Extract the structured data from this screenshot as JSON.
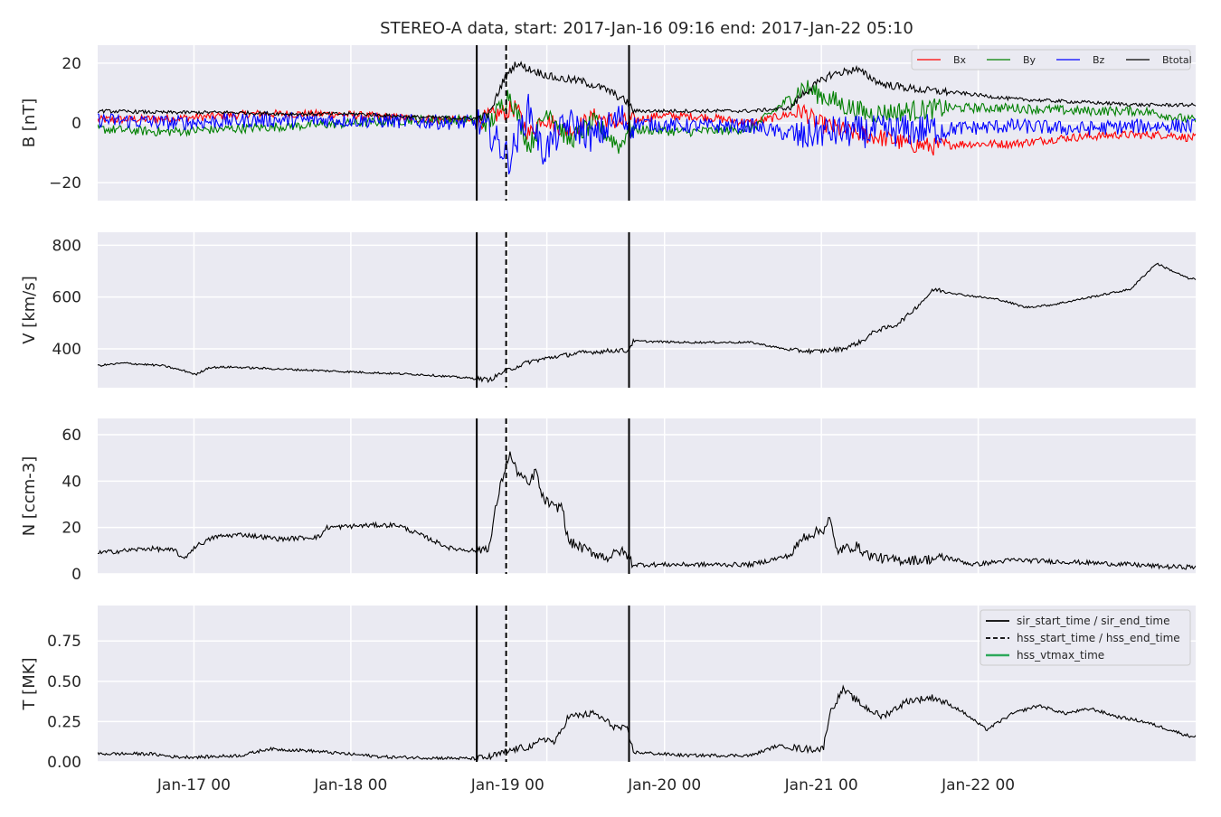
{
  "figure_title": "STEREO-A data, start: 2017-Jan-16 09:16  end: 2017-Jan-22 05:10",
  "colors": {
    "panel_bg": "#eaeaf2",
    "grid": "#ffffff",
    "bx": "#ff0000",
    "by": "#008000",
    "bz": "#0000ff",
    "btotal": "#000000",
    "event_line": "#000000",
    "hss_vtmax": "#2ca85a"
  },
  "chart_data": [
    {
      "type": "line",
      "ylabel": "B [nT]",
      "ylim": [
        -26,
        26
      ],
      "yticks": [
        -20,
        0,
        20
      ],
      "ytick_labels": [
        "−20",
        "0",
        "20"
      ],
      "legend_position": "top-right",
      "series": [
        {
          "name": "Bx",
          "color_key": "bx",
          "noise": 1.4,
          "points": [
            [
              0,
              1
            ],
            [
              12,
              1.5
            ],
            [
              24,
              3
            ],
            [
              36,
              3
            ],
            [
              48,
              1.5
            ],
            [
              58,
              0.5
            ],
            [
              60,
              2
            ],
            [
              64,
              5
            ],
            [
              66,
              -4
            ],
            [
              68,
              2
            ],
            [
              72,
              -3
            ],
            [
              76,
              2
            ],
            [
              80,
              0
            ],
            [
              86,
              2.5
            ],
            [
              93,
              2
            ],
            [
              100,
              0
            ],
            [
              108,
              4
            ],
            [
              110,
              0
            ],
            [
              115,
              -3
            ],
            [
              120,
              -5
            ],
            [
              124,
              -7
            ],
            [
              128,
              -8
            ],
            [
              132,
              -7
            ],
            [
              140,
              -7
            ],
            [
              148,
              -5
            ],
            [
              156,
              -4
            ],
            [
              164,
              -4
            ],
            [
              167,
              -5
            ]
          ]
        },
        {
          "name": "By",
          "color_key": "by",
          "noise": 1.6,
          "points": [
            [
              0,
              -2
            ],
            [
              10,
              -3
            ],
            [
              20,
              -2
            ],
            [
              30,
              -1
            ],
            [
              40,
              0
            ],
            [
              48,
              1
            ],
            [
              58,
              1
            ],
            [
              60,
              0
            ],
            [
              63,
              10
            ],
            [
              66,
              -8
            ],
            [
              69,
              5
            ],
            [
              72,
              -6
            ],
            [
              76,
              0
            ],
            [
              80,
              -8
            ],
            [
              81,
              -2
            ],
            [
              90,
              -3
            ],
            [
              100,
              -2
            ],
            [
              108,
              12
            ],
            [
              110,
              10
            ],
            [
              114,
              6
            ],
            [
              118,
              3
            ],
            [
              124,
              4
            ],
            [
              130,
              5
            ],
            [
              140,
              5
            ],
            [
              150,
              4
            ],
            [
              160,
              4
            ],
            [
              167,
              1
            ]
          ]
        },
        {
          "name": "Bz",
          "color_key": "bz",
          "noise": 2.5,
          "points": [
            [
              0,
              1
            ],
            [
              12,
              0
            ],
            [
              24,
              1
            ],
            [
              36,
              1
            ],
            [
              48,
              0.5
            ],
            [
              58,
              0
            ],
            [
              60,
              -3
            ],
            [
              63,
              -12
            ],
            [
              66,
              5
            ],
            [
              68,
              -10
            ],
            [
              72,
              0
            ],
            [
              76,
              -5
            ],
            [
              80,
              2
            ],
            [
              81,
              0
            ],
            [
              90,
              -1
            ],
            [
              100,
              -1
            ],
            [
              108,
              -5
            ],
            [
              110,
              -3
            ],
            [
              118,
              -3
            ],
            [
              130,
              -2
            ],
            [
              140,
              -1
            ],
            [
              150,
              -2
            ],
            [
              160,
              -1
            ],
            [
              167,
              -1
            ]
          ]
        },
        {
          "name": "Btotal",
          "color_key": "btotal",
          "noise": 0.6,
          "points": [
            [
              0,
              4
            ],
            [
              10,
              3.5
            ],
            [
              20,
              3.5
            ],
            [
              30,
              3
            ],
            [
              40,
              3
            ],
            [
              48,
              2
            ],
            [
              58,
              1.5
            ],
            [
              60,
              3
            ],
            [
              62,
              14
            ],
            [
              64,
              20
            ],
            [
              66,
              18
            ],
            [
              70,
              15
            ],
            [
              74,
              14
            ],
            [
              78,
              11
            ],
            [
              81,
              7
            ],
            [
              82,
              4
            ],
            [
              90,
              4
            ],
            [
              100,
              4
            ],
            [
              106,
              5
            ],
            [
              108,
              10
            ],
            [
              112,
              16
            ],
            [
              116,
              18
            ],
            [
              120,
              13
            ],
            [
              126,
              11
            ],
            [
              132,
              10
            ],
            [
              140,
              8
            ],
            [
              150,
              7
            ],
            [
              160,
              6
            ],
            [
              167,
              6
            ]
          ]
        }
      ]
    },
    {
      "type": "line",
      "ylabel": "V [km/s]",
      "ylim": [
        250,
        850
      ],
      "yticks": [
        400,
        600,
        800
      ],
      "ytick_labels": [
        "400",
        "600",
        "800"
      ],
      "series": [
        {
          "name": "",
          "color_key": "btotal",
          "noise": 4,
          "points": [
            [
              0,
              335
            ],
            [
              4,
              345
            ],
            [
              10,
              335
            ],
            [
              14,
              310
            ],
            [
              15,
              300
            ],
            [
              17,
              328
            ],
            [
              20,
              330
            ],
            [
              30,
              320
            ],
            [
              40,
              310
            ],
            [
              50,
              300
            ],
            [
              58,
              285
            ],
            [
              60,
              280
            ],
            [
              62,
              310
            ],
            [
              66,
              350
            ],
            [
              70,
              370
            ],
            [
              74,
              385
            ],
            [
              80,
              395
            ],
            [
              81,
              390
            ],
            [
              82,
              430
            ],
            [
              90,
              425
            ],
            [
              100,
              425
            ],
            [
              106,
              395
            ],
            [
              110,
              390
            ],
            [
              114,
              400
            ],
            [
              117,
              430
            ],
            [
              119,
              470
            ],
            [
              122,
              490
            ],
            [
              124,
              530
            ],
            [
              126,
              580
            ],
            [
              128,
              630
            ],
            [
              132,
              610
            ],
            [
              138,
              590
            ],
            [
              142,
              560
            ],
            [
              146,
              570
            ],
            [
              150,
              590
            ],
            [
              154,
              610
            ],
            [
              158,
              630
            ],
            [
              162,
              730
            ],
            [
              167,
              670
            ]
          ]
        }
      ]
    },
    {
      "type": "line",
      "ylabel": "N [ccm-3]",
      "ylim": [
        0,
        67
      ],
      "yticks": [
        0,
        20,
        40,
        60
      ],
      "ytick_labels": [
        "0",
        "20",
        "40",
        "60"
      ],
      "series": [
        {
          "name": "",
          "color_key": "btotal",
          "noise": 1.0,
          "points": [
            [
              0,
              9
            ],
            [
              8,
              11
            ],
            [
              12,
              10
            ],
            [
              13,
              6
            ],
            [
              15,
              12
            ],
            [
              18,
              16
            ],
            [
              22,
              17
            ],
            [
              28,
              15
            ],
            [
              34,
              16
            ],
            [
              35,
              20
            ],
            [
              42,
              21
            ],
            [
              46,
              21
            ],
            [
              50,
              16
            ],
            [
              54,
              11
            ],
            [
              58,
              10
            ],
            [
              60,
              12
            ],
            [
              61,
              30
            ],
            [
              62,
              42
            ],
            [
              63,
              52
            ],
            [
              64,
              45
            ],
            [
              66,
              38
            ],
            [
              67,
              45
            ],
            [
              68,
              33
            ],
            [
              70,
              28
            ],
            [
              71,
              30
            ],
            [
              72,
              14
            ],
            [
              75,
              10
            ],
            [
              78,
              7
            ],
            [
              80,
              10
            ],
            [
              81,
              8
            ],
            [
              82,
              4
            ],
            [
              90,
              4
            ],
            [
              100,
              4
            ],
            [
              106,
              8
            ],
            [
              108,
              16
            ],
            [
              111,
              19
            ],
            [
              112,
              24
            ],
            [
              113,
              10
            ],
            [
              116,
              12
            ],
            [
              118,
              8
            ],
            [
              121,
              6
            ],
            [
              126,
              6
            ],
            [
              130,
              7
            ],
            [
              134,
              4
            ],
            [
              140,
              6
            ],
            [
              150,
              5
            ],
            [
              158,
              4
            ],
            [
              164,
              3
            ],
            [
              167,
              3
            ]
          ]
        }
      ]
    },
    {
      "type": "line",
      "ylabel": "T [MK]",
      "ylim": [
        0,
        0.97
      ],
      "yticks": [
        0,
        0.25,
        0.5,
        0.75
      ],
      "ytick_labels": [
        "0.00",
        "0.25",
        "0.50",
        "0.75"
      ],
      "legend_position": "top-right",
      "series": [
        {
          "name": "",
          "color_key": "btotal",
          "noise": 0.01,
          "points": [
            [
              0,
              0.05
            ],
            [
              8,
              0.05
            ],
            [
              12,
              0.03
            ],
            [
              16,
              0.03
            ],
            [
              22,
              0.04
            ],
            [
              26,
              0.08
            ],
            [
              32,
              0.07
            ],
            [
              38,
              0.05
            ],
            [
              44,
              0.03
            ],
            [
              58,
              0.02
            ],
            [
              60,
              0.03
            ],
            [
              64,
              0.08
            ],
            [
              67,
              0.1
            ],
            [
              68,
              0.15
            ],
            [
              70,
              0.12
            ],
            [
              72,
              0.28
            ],
            [
              76,
              0.3
            ],
            [
              79,
              0.22
            ],
            [
              81,
              0.2
            ],
            [
              82,
              0.06
            ],
            [
              90,
              0.04
            ],
            [
              100,
              0.04
            ],
            [
              104,
              0.1
            ],
            [
              108,
              0.08
            ],
            [
              111,
              0.08
            ],
            [
              112,
              0.3
            ],
            [
              114,
              0.45
            ],
            [
              117,
              0.35
            ],
            [
              120,
              0.28
            ],
            [
              124,
              0.38
            ],
            [
              128,
              0.4
            ],
            [
              132,
              0.32
            ],
            [
              136,
              0.2
            ],
            [
              140,
              0.3
            ],
            [
              144,
              0.35
            ],
            [
              148,
              0.3
            ],
            [
              152,
              0.33
            ],
            [
              156,
              0.28
            ],
            [
              160,
              0.25
            ],
            [
              164,
              0.2
            ],
            [
              167,
              0.16
            ]
          ]
        }
      ]
    }
  ],
  "x_axis": {
    "span_hours": 168,
    "ticks": [
      {
        "hour": 14.73,
        "label": "Jan-17 00"
      },
      {
        "hour": 38.73,
        "label": "Jan-18 00"
      },
      {
        "hour": 62.73,
        "label": "Jan-19 00"
      },
      {
        "hour": 86.73,
        "label": "Jan-20 00"
      },
      {
        "hour": 110.73,
        "label": "Jan-21 00"
      },
      {
        "hour": 134.73,
        "label": "Jan-22 00"
      }
    ],
    "extra_gridlines_hours": [
      68.73
    ]
  },
  "event_lines": [
    {
      "hour": 58.0,
      "style": "solid"
    },
    {
      "hour": 62.5,
      "style": "dashed"
    },
    {
      "hour": 81.3,
      "style": "solid"
    }
  ],
  "legend_b": {
    "entries": [
      {
        "label": "Bx",
        "color_key": "bx"
      },
      {
        "label": "By",
        "color_key": "by"
      },
      {
        "label": "Bz",
        "color_key": "bz"
      },
      {
        "label": "Btotal",
        "color_key": "btotal"
      }
    ]
  },
  "legend_t": {
    "entries": [
      {
        "label": "sir_start_time / sir_end_time",
        "color_key": "event_line",
        "style": "solid"
      },
      {
        "label": "hss_start_time / hss_end_time",
        "color_key": "event_line",
        "style": "dashed"
      },
      {
        "label": "hss_vtmax_time",
        "color_key": "hss_vtmax",
        "style": "solid"
      }
    ]
  }
}
